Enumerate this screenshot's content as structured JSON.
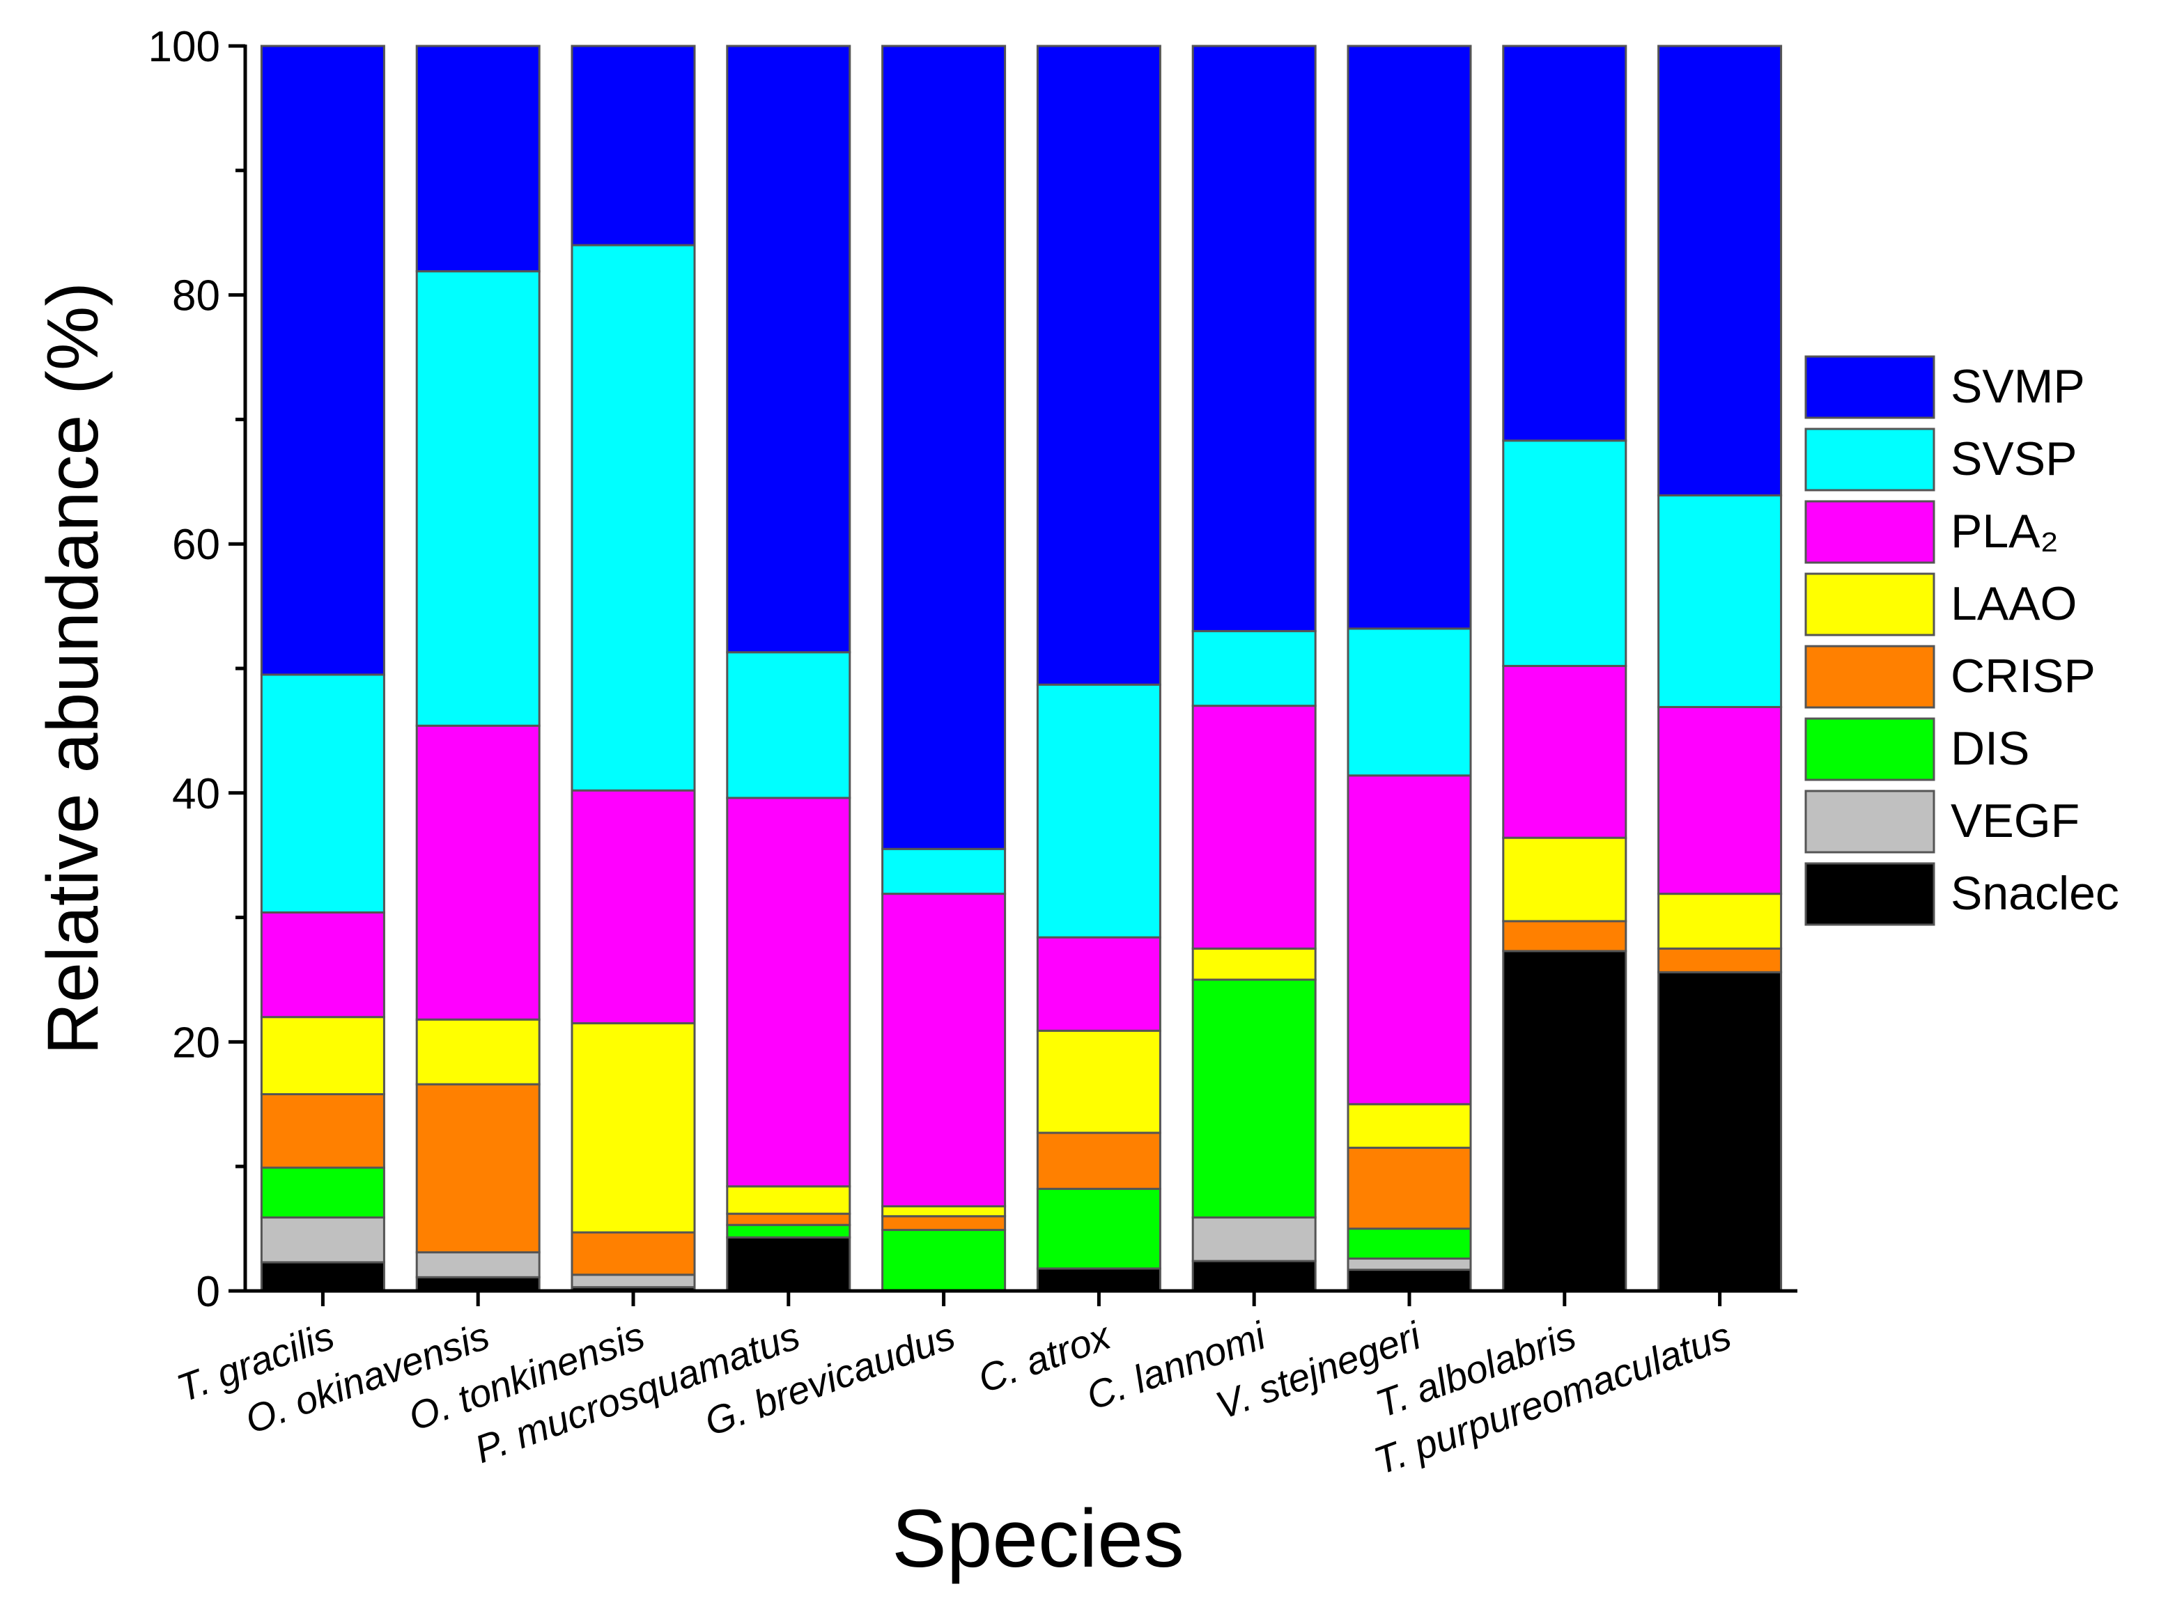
{
  "chart_data": {
    "type": "bar",
    "stacked": true,
    "title": "",
    "xlabel": "Species",
    "ylabel": "Relative abundance (%)",
    "ylim": [
      0,
      100
    ],
    "yticks": [
      0,
      20,
      40,
      60,
      80,
      100
    ],
    "grid": false,
    "legend_position": "right",
    "categories": [
      "T. gracilis",
      "O. okinavensis",
      "O. tonkinensis",
      "P. mucrosquamatus",
      "G. brevicaudus",
      "C. atrox",
      "C. lannomi",
      "V. stejnegeri",
      "T. albolabris",
      "T. purpureomaculatus"
    ],
    "series": [
      {
        "name": "Snaclec",
        "color": "#000000",
        "values": [
          2.3,
          1.1,
          0.3,
          4.3,
          0,
          1.8,
          2.4,
          1.7,
          27.3,
          25.6
        ]
      },
      {
        "name": "VEGF",
        "color": "#C0C0C0",
        "values": [
          3.6,
          2.0,
          1.0,
          0,
          0,
          0,
          3.5,
          0.9,
          0,
          0
        ]
      },
      {
        "name": "DIS",
        "color": "#00FF00",
        "values": [
          4.0,
          0,
          0,
          1.0,
          4.9,
          6.4,
          19.1,
          2.4,
          0,
          0
        ]
      },
      {
        "name": "CRISP",
        "color": "#FF8000",
        "values": [
          5.9,
          13.5,
          3.4,
          0.9,
          1.1,
          4.5,
          0,
          6.5,
          2.4,
          1.9
        ]
      },
      {
        "name": "LAAO",
        "color": "#FFFF00",
        "values": [
          6.2,
          5.2,
          16.8,
          2.2,
          0.8,
          8.2,
          2.5,
          3.5,
          6.7,
          4.4
        ]
      },
      {
        "name": "PLA₂",
        "color": "#FF00FF",
        "values": [
          8.4,
          23.6,
          18.7,
          31.2,
          25.1,
          7.5,
          19.5,
          26.4,
          13.8,
          15.0
        ]
      },
      {
        "name": "SVSP",
        "color": "#00FFFF",
        "values": [
          19.1,
          36.5,
          43.8,
          11.7,
          3.6,
          20.3,
          6.0,
          11.8,
          18.1,
          17.0
        ]
      },
      {
        "name": "SVMP",
        "color": "#0000FF",
        "values": [
          50.5,
          18.1,
          16.0,
          48.7,
          64.5,
          51.3,
          47.0,
          46.8,
          31.7,
          36.1
        ]
      }
    ]
  }
}
